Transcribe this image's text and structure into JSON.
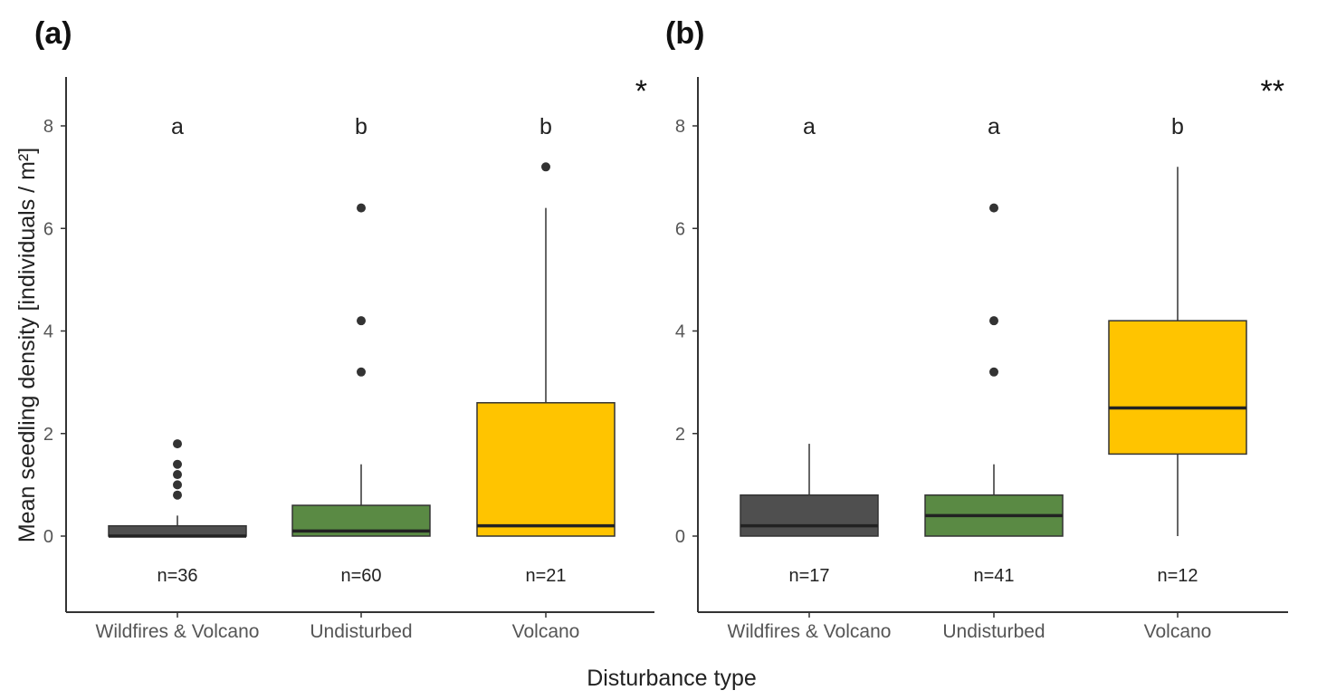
{
  "chart_data": [
    {
      "type": "box",
      "panel_label": "(a)",
      "significance": "*",
      "categories": [
        "Wildfires & Volcano",
        "Undisturbed",
        "Volcano"
      ],
      "colors": [
        "#4f4f4f",
        "#5a8a44",
        "#ffc400"
      ],
      "boxes": [
        {
          "q1": 0,
          "median": 0,
          "q3": 0.2,
          "whisker_low": 0,
          "whisker_high": 0.4,
          "outliers": [
            0.8,
            1.0,
            1.2,
            1.4,
            1.8
          ]
        },
        {
          "q1": 0,
          "median": 0.1,
          "q3": 0.6,
          "whisker_low": 0,
          "whisker_high": 1.4,
          "outliers": [
            3.2,
            4.2,
            6.4
          ]
        },
        {
          "q1": 0,
          "median": 0.2,
          "q3": 2.6,
          "whisker_low": 0,
          "whisker_high": 6.4,
          "outliers": [
            7.2
          ]
        }
      ],
      "group_letters": [
        "a",
        "b",
        "b"
      ],
      "n_labels": [
        "n=36",
        "n=60",
        "n=21"
      ],
      "yticks": [
        "0",
        "2",
        "4",
        "6",
        "8"
      ],
      "ylim": [
        -1.4,
        9.0
      ]
    },
    {
      "type": "box",
      "panel_label": "(b)",
      "significance": "**",
      "categories": [
        "Wildfires & Volcano",
        "Undisturbed",
        "Volcano"
      ],
      "colors": [
        "#4f4f4f",
        "#5a8a44",
        "#ffc400"
      ],
      "boxes": [
        {
          "q1": 0,
          "median": 0.2,
          "q3": 0.8,
          "whisker_low": 0,
          "whisker_high": 1.8,
          "outliers": []
        },
        {
          "q1": 0,
          "median": 0.4,
          "q3": 0.8,
          "whisker_low": 0,
          "whisker_high": 1.4,
          "outliers": [
            3.2,
            4.2,
            6.4
          ]
        },
        {
          "q1": 1.6,
          "median": 2.5,
          "q3": 4.2,
          "whisker_low": 0,
          "whisker_high": 7.2,
          "outliers": []
        }
      ],
      "group_letters": [
        "a",
        "a",
        "b"
      ],
      "n_labels": [
        "n=17",
        "n=41",
        "n=12"
      ],
      "yticks": [
        "0",
        "2",
        "4",
        "6",
        "8"
      ],
      "ylim": [
        -1.4,
        9.0
      ]
    }
  ],
  "ylabel": "Mean seedling density [individuals / m²]",
  "xlabel": "Disturbance type"
}
